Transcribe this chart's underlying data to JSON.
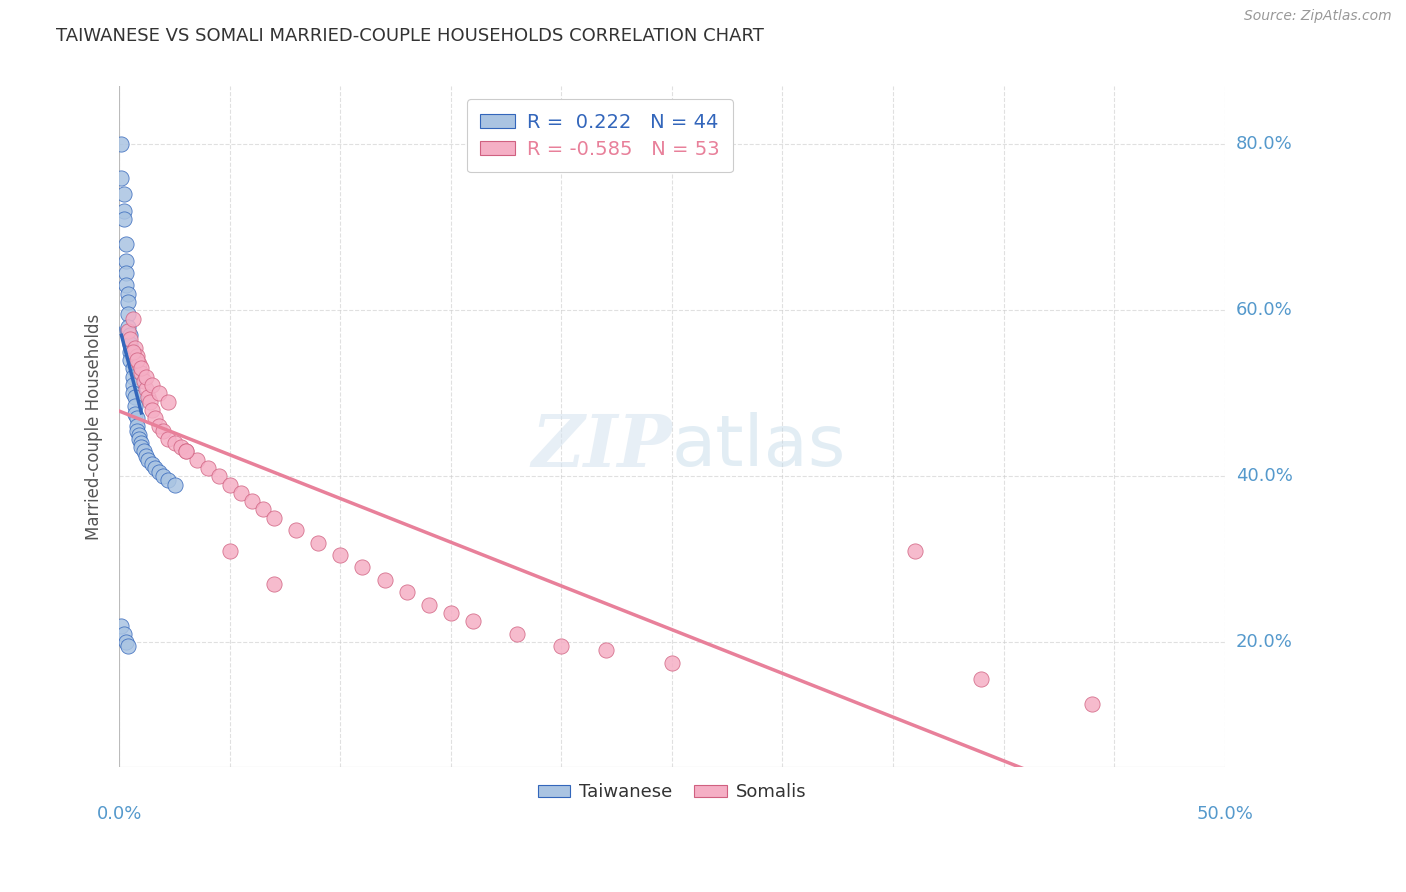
{
  "title": "TAIWANESE VS SOMALI MARRIED-COUPLE HOUSEHOLDS CORRELATION CHART",
  "source": "Source: ZipAtlas.com",
  "ylabel": "Married-couple Households",
  "xlim": [
    0.0,
    0.5
  ],
  "ylim": [
    0.05,
    0.87
  ],
  "ytick_labels": [
    "20.0%",
    "40.0%",
    "60.0%",
    "80.0%"
  ],
  "ytick_vals": [
    0.2,
    0.4,
    0.6,
    0.8
  ],
  "taiwanese_color": "#aac4e2",
  "somali_color": "#f5afc5",
  "trendline_taiwanese_color": "#3366bb",
  "trendline_somali_color": "#e8809a",
  "background_color": "#ffffff",
  "grid_color": "#cccccc",
  "label_color": "#5599cc",
  "title_color": "#333333",
  "source_color": "#999999",
  "taiwanese_x": [
    0.001,
    0.001,
    0.002,
    0.002,
    0.002,
    0.003,
    0.003,
    0.003,
    0.003,
    0.004,
    0.004,
    0.004,
    0.004,
    0.005,
    0.005,
    0.005,
    0.005,
    0.006,
    0.006,
    0.006,
    0.006,
    0.007,
    0.007,
    0.007,
    0.008,
    0.008,
    0.008,
    0.009,
    0.009,
    0.01,
    0.01,
    0.011,
    0.012,
    0.013,
    0.015,
    0.016,
    0.018,
    0.02,
    0.022,
    0.025,
    0.001,
    0.002,
    0.003,
    0.004
  ],
  "taiwanese_y": [
    0.8,
    0.76,
    0.74,
    0.72,
    0.71,
    0.68,
    0.66,
    0.645,
    0.63,
    0.62,
    0.61,
    0.595,
    0.58,
    0.57,
    0.56,
    0.55,
    0.54,
    0.53,
    0.52,
    0.51,
    0.5,
    0.495,
    0.485,
    0.475,
    0.47,
    0.46,
    0.455,
    0.45,
    0.445,
    0.44,
    0.435,
    0.43,
    0.425,
    0.42,
    0.415,
    0.41,
    0.405,
    0.4,
    0.395,
    0.39,
    0.22,
    0.21,
    0.2,
    0.195
  ],
  "somali_x": [
    0.004,
    0.005,
    0.006,
    0.007,
    0.008,
    0.009,
    0.01,
    0.011,
    0.012,
    0.013,
    0.014,
    0.015,
    0.016,
    0.018,
    0.02,
    0.022,
    0.025,
    0.028,
    0.03,
    0.035,
    0.04,
    0.045,
    0.05,
    0.055,
    0.06,
    0.065,
    0.07,
    0.08,
    0.09,
    0.1,
    0.11,
    0.12,
    0.13,
    0.14,
    0.15,
    0.16,
    0.18,
    0.2,
    0.22,
    0.25,
    0.006,
    0.008,
    0.01,
    0.012,
    0.015,
    0.018,
    0.022,
    0.03,
    0.05,
    0.07,
    0.36,
    0.39,
    0.44
  ],
  "somali_y": [
    0.575,
    0.565,
    0.59,
    0.555,
    0.545,
    0.535,
    0.525,
    0.515,
    0.505,
    0.495,
    0.49,
    0.48,
    0.47,
    0.46,
    0.455,
    0.445,
    0.44,
    0.435,
    0.43,
    0.42,
    0.41,
    0.4,
    0.39,
    0.38,
    0.37,
    0.36,
    0.35,
    0.335,
    0.32,
    0.305,
    0.29,
    0.275,
    0.26,
    0.245,
    0.235,
    0.225,
    0.21,
    0.195,
    0.19,
    0.175,
    0.55,
    0.54,
    0.53,
    0.52,
    0.51,
    0.5,
    0.49,
    0.43,
    0.31,
    0.27,
    0.31,
    0.155,
    0.125
  ],
  "tw_trend_x0": 0.0,
  "tw_trend_x1": 0.05,
  "so_trend_x0": 0.0,
  "so_trend_x1": 0.5
}
